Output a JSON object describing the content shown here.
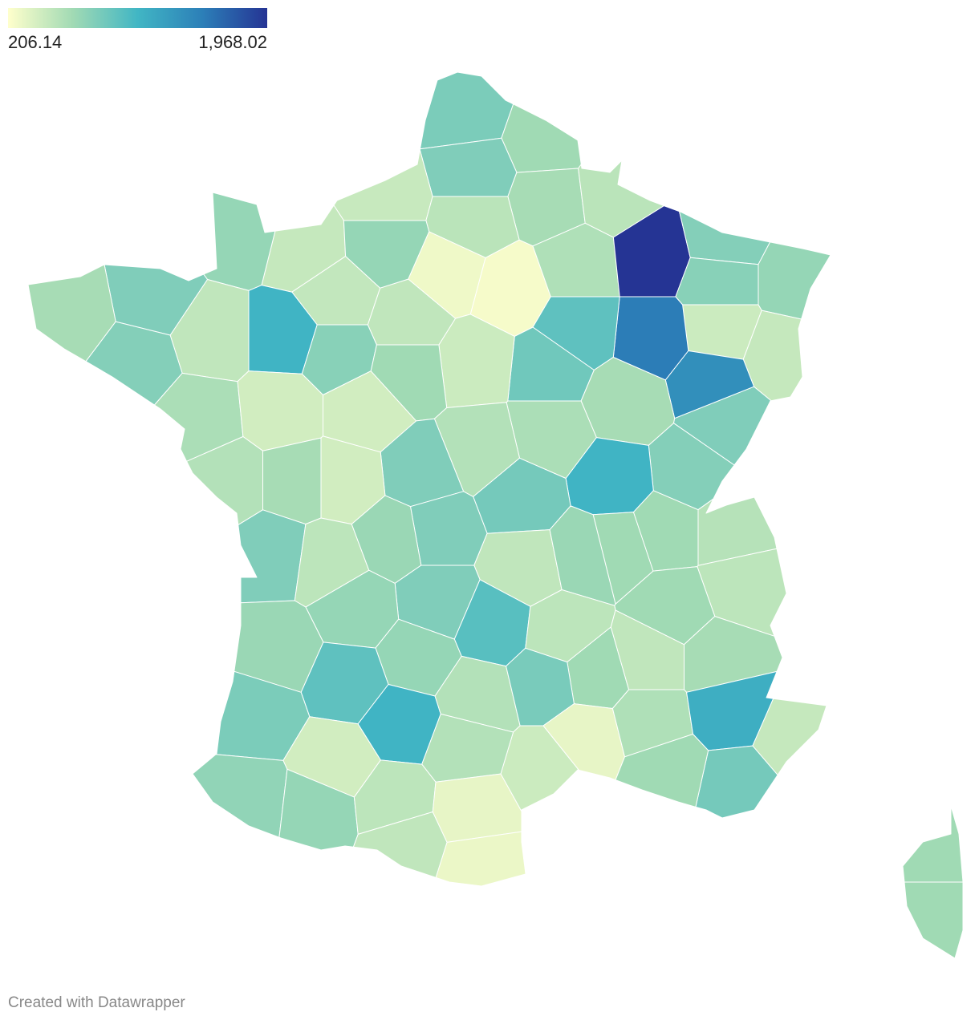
{
  "chart_data": {
    "type": "choropleth",
    "values": [
      820,
      650,
      800,
      620,
      530,
      470,
      530,
      700,
      480,
      700,
      280,
      250,
      580,
      1968.02,
      780,
      700,
      760,
      450,
      480,
      1540,
      1400,
      950,
      870,
      620,
      800,
      780,
      1100,
      600,
      450,
      500,
      490,
      1100,
      760,
      500,
      800,
      620,
      780,
      600,
      420,
      420,
      650,
      560,
      800,
      420,
      620,
      560,
      800,
      520,
      850,
      800,
      680,
      500,
      680,
      650,
      650,
      550,
      520,
      650,
      800,
      700,
      680,
      980,
      520,
      650,
      500,
      620,
      700,
      950,
      820,
      1100,
      560,
      830,
      320,
      580,
      1150,
      480,
      850,
      650,
      450,
      560,
      420,
      720,
      700,
      520,
      500,
      320,
      300,
      650,
      650
    ],
    "colors": [
      "#ffffcc",
      "#a1dab4",
      "#41b6c4",
      "#2c7fb8",
      "#253494"
    ],
    "legend_ticks": [
      206.14,
      {
        "value": 1968.02,
        "label": "1,968.02"
      }
    ]
  },
  "credit": "Created with Datawrapper"
}
